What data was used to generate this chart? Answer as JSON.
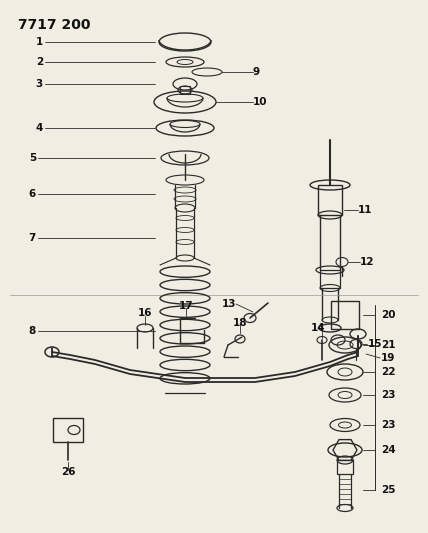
{
  "title": "7717 200",
  "bg_color": "#f2ede3",
  "line_color": "#2a2a2a",
  "label_color": "#111111",
  "figsize": [
    4.28,
    5.33
  ],
  "dpi": 100
}
